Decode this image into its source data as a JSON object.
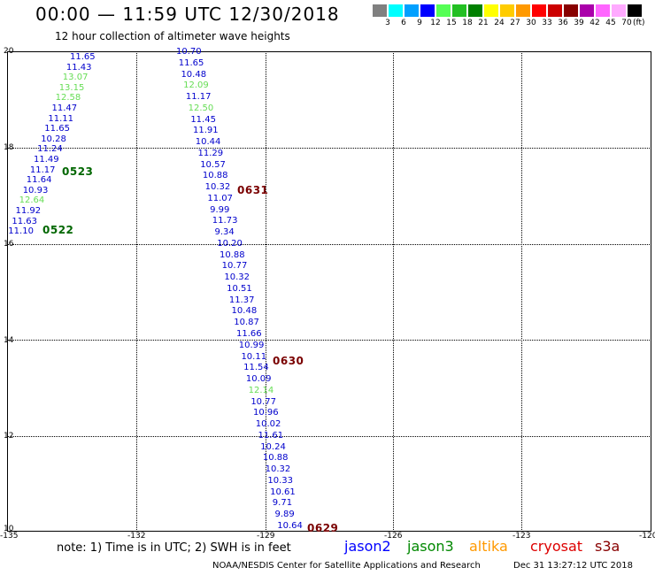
{
  "header": {
    "title": "00:00 — 11:59 UTC 12/30/2018",
    "subtitle": "12 hour collection of altimeter wave heights"
  },
  "legend": {
    "unit": "(ft)",
    "colors": [
      "#808080",
      "#00ffff",
      "#00a0ff",
      "#0000ff",
      "#55ff55",
      "#22c022",
      "#008000",
      "#ffff00",
      "#ffcc00",
      "#ff9900",
      "#ff0000",
      "#cc0000",
      "#880000",
      "#aa00aa",
      "#ff66ff",
      "#ffaaff",
      "#000000"
    ],
    "labels": [
      "3",
      "6",
      "9",
      "12",
      "15",
      "18",
      "21",
      "24",
      "27",
      "30",
      "33",
      "36",
      "39",
      "42",
      "45",
      "70"
    ]
  },
  "axes": {
    "y_ticks": [
      "20",
      "18",
      "16",
      "14",
      "12",
      "10"
    ],
    "x_ticks": [
      "-135",
      "-132",
      "-129",
      "-126",
      "-123",
      "-120"
    ]
  },
  "tracks": {
    "t1": {
      "values": [
        "11.65",
        "11.43",
        "13.07",
        "13.15",
        "12.58",
        "11.47",
        "11.11",
        "11.65",
        "10.28",
        "11.24",
        "11.49",
        "11.17",
        "11.64",
        "10.93",
        "12.64",
        "11.92",
        "11.63",
        "11.10"
      ],
      "highlights": [
        2,
        3,
        4,
        14
      ]
    },
    "t2": {
      "values": [
        "10.70",
        "11.65",
        "10.48",
        "12.09",
        "11.17",
        "12.50",
        "11.45",
        "11.91",
        "10.44",
        "11.29",
        "10.57",
        "10.88",
        "10.32",
        "11.07",
        "9.99",
        "11.73",
        "9.34",
        "10.20",
        "10.88",
        "10.77",
        "10.32",
        "10.51",
        "11.37",
        "10.48",
        "10.87",
        "11.66",
        "10.99",
        "10.11",
        "11.54",
        "10.09",
        "12.14",
        "10.77",
        "10.96",
        "10.02",
        "11.61",
        "10.24",
        "10.88",
        "10.32",
        "10.33",
        "10.61",
        "9.71",
        "9.89",
        "10.64"
      ],
      "highlights": [
        3,
        5,
        30
      ]
    }
  },
  "pass_labels": {
    "p0523": "0523",
    "p0522": "0522",
    "p0631": "0631",
    "p0630": "0630",
    "p0629": "0629"
  },
  "pass_colors": {
    "jason3": "#006600",
    "cryosat": "#7a0000",
    "blue": "#0000cc",
    "lightgreen": "#66dd55"
  },
  "footer": {
    "note": "note:  1) Time is in UTC;  2) SWH is in feet",
    "satellites": [
      {
        "name": "jason2",
        "color": "#0000ff"
      },
      {
        "name": "jason3",
        "color": "#008800"
      },
      {
        "name": "altika",
        "color": "#ff9900"
      },
      {
        "name": "cryosat",
        "color": "#dd0000"
      },
      {
        "name": "s3a",
        "color": "#880000"
      }
    ],
    "credit": "NOAA/NESDIS Center for Satellite Applications and Research",
    "timestamp": "Dec 31 13:27:12 UTC 2018"
  }
}
